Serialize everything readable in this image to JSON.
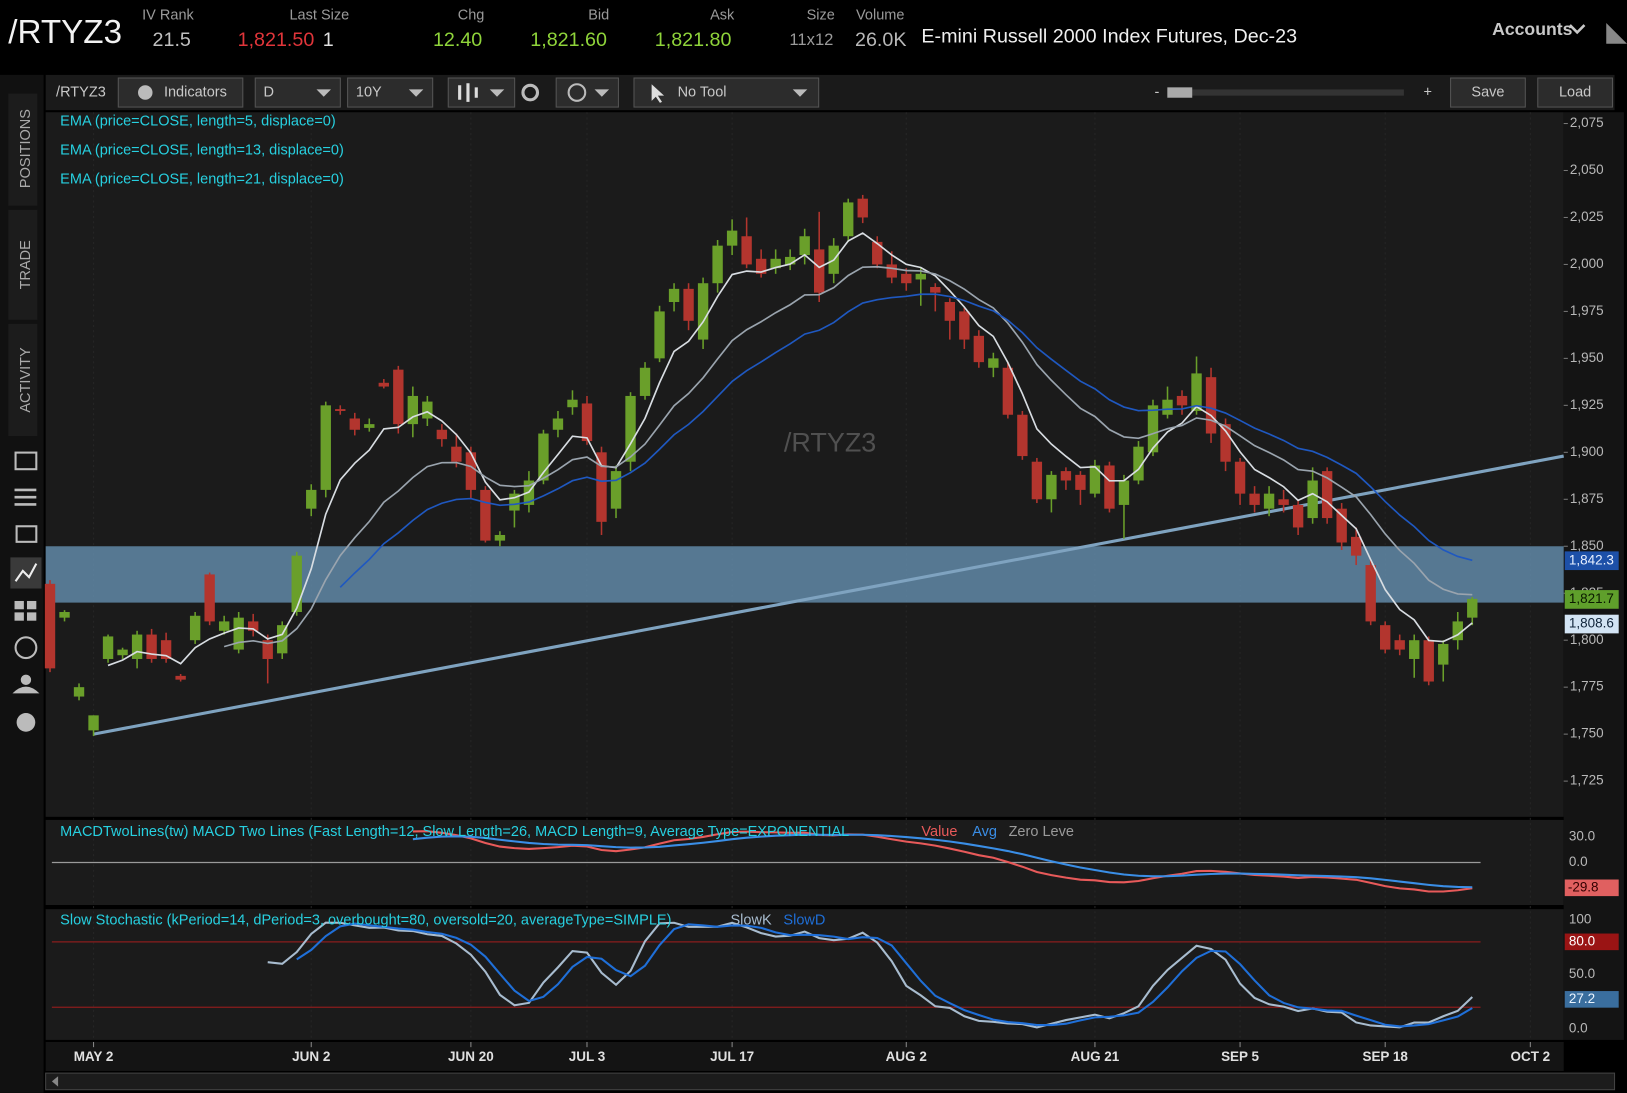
{
  "header": {
    "symbol": "/RTYZ3",
    "fields": [
      {
        "label": "IV Rank",
        "value": "21.5"
      },
      {
        "label": "Last Size",
        "value": "1,821.50",
        "size": "1"
      },
      {
        "label": "Chg",
        "value": "12.40"
      },
      {
        "label": "Bid",
        "value": "1,821.60"
      },
      {
        "label": "Ask",
        "value": "1,821.80"
      },
      {
        "label": "Size",
        "value": "11x12"
      },
      {
        "label": "Volume",
        "value": "26.0K"
      }
    ],
    "description": "E-mini Russell 2000 Index Futures, Dec-23",
    "accounts": "Accounts"
  },
  "toolbar": {
    "symbol": "/RTYZ3",
    "indicators": "Indicators",
    "aggregation": "D",
    "period": "10Y",
    "tool": "No Tool",
    "zoom_out": "-",
    "zoom_in": "+",
    "save": "Save",
    "load": "Load"
  },
  "sidebar": [
    "POSITIONS",
    "TRADE",
    "ACTIVITY"
  ],
  "chart_data": {
    "type": "candlestick",
    "watermark": "/RTYZ3",
    "up_color": "#6a9f2a",
    "down_color": "#b3352e",
    "candles": [
      [
        1830,
        1832,
        1783,
        1785
      ],
      [
        1812,
        1816,
        1810,
        1815
      ],
      [
        1770,
        1777,
        1768,
        1775
      ],
      [
        1752,
        1760,
        1749,
        1760
      ],
      [
        1790,
        1803,
        1788,
        1802
      ],
      [
        1792,
        1796,
        1790,
        1795
      ],
      [
        1790,
        1805,
        1785,
        1803
      ],
      [
        1803,
        1806,
        1788,
        1790
      ],
      [
        1800,
        1804,
        1788,
        1790
      ],
      [
        1781,
        1782,
        1778,
        1779
      ],
      [
        1800,
        1815,
        1798,
        1813
      ],
      [
        1835,
        1836,
        1808,
        1810
      ],
      [
        1805,
        1813,
        1803,
        1810
      ],
      [
        1795,
        1815,
        1793,
        1812
      ],
      [
        1810,
        1814,
        1802,
        1805
      ],
      [
        1800,
        1803,
        1777,
        1790
      ],
      [
        1793,
        1810,
        1790,
        1808
      ],
      [
        1815,
        1847,
        1813,
        1845
      ],
      [
        1870,
        1883,
        1866,
        1880
      ],
      [
        1880,
        1927,
        1876,
        1925
      ],
      [
        1923,
        1925,
        1920,
        1922
      ],
      [
        1918,
        1921,
        1909,
        1912
      ],
      [
        1913,
        1918,
        1911,
        1915
      ],
      [
        1937,
        1939,
        1934,
        1935
      ],
      [
        1944,
        1946,
        1910,
        1915
      ],
      [
        1915,
        1935,
        1908,
        1930
      ],
      [
        1918,
        1930,
        1914,
        1927
      ],
      [
        1912,
        1915,
        1903,
        1907
      ],
      [
        1903,
        1910,
        1892,
        1895
      ],
      [
        1900,
        1903,
        1875,
        1880
      ],
      [
        1880,
        1882,
        1852,
        1853
      ],
      [
        1853,
        1858,
        1850,
        1856
      ],
      [
        1869,
        1880,
        1860,
        1878
      ],
      [
        1872,
        1890,
        1868,
        1885
      ],
      [
        1885,
        1912,
        1883,
        1910
      ],
      [
        1912,
        1922,
        1908,
        1918
      ],
      [
        1924,
        1933,
        1920,
        1928
      ],
      [
        1926,
        1930,
        1904,
        1906
      ],
      [
        1900,
        1903,
        1856,
        1863
      ],
      [
        1870,
        1893,
        1865,
        1890
      ],
      [
        1895,
        1932,
        1890,
        1930
      ],
      [
        1930,
        1948,
        1928,
        1945
      ],
      [
        1950,
        1978,
        1948,
        1975
      ],
      [
        1980,
        1990,
        1975,
        1987
      ],
      [
        1987,
        1990,
        1965,
        1970
      ],
      [
        1960,
        1993,
        1955,
        1990
      ],
      [
        1990,
        2013,
        1985,
        2010
      ],
      [
        2010,
        2024,
        2005,
        2018
      ],
      [
        2015,
        2025,
        1998,
        2000
      ],
      [
        2003,
        2008,
        1993,
        1995
      ],
      [
        1998,
        2008,
        1995,
        2003
      ],
      [
        2000,
        2008,
        1997,
        2004
      ],
      [
        2005,
        2019,
        2000,
        2015
      ],
      [
        2008,
        2028,
        1980,
        1985
      ],
      [
        1995,
        2014,
        1990,
        2010
      ],
      [
        2015,
        2035,
        2012,
        2033
      ],
      [
        2035,
        2037,
        2022,
        2025
      ],
      [
        2012,
        2015,
        1998,
        2000
      ],
      [
        2000,
        2007,
        1990,
        1993
      ],
      [
        1995,
        1998,
        1986,
        1990
      ],
      [
        1992,
        1998,
        1978,
        1995
      ],
      [
        1988,
        1990,
        1975,
        1985
      ],
      [
        1980,
        1982,
        1960,
        1970
      ],
      [
        1975,
        1977,
        1955,
        1960
      ],
      [
        1962,
        1965,
        1945,
        1948
      ],
      [
        1945,
        1953,
        1940,
        1950
      ],
      [
        1945,
        1948,
        1918,
        1920
      ],
      [
        1920,
        1922,
        1896,
        1898
      ],
      [
        1895,
        1897,
        1873,
        1875
      ],
      [
        1875,
        1890,
        1868,
        1888
      ],
      [
        1890,
        1892,
        1880,
        1885
      ],
      [
        1888,
        1890,
        1872,
        1880
      ],
      [
        1878,
        1896,
        1876,
        1893
      ],
      [
        1893,
        1895,
        1868,
        1870
      ],
      [
        1872,
        1888,
        1854,
        1885
      ],
      [
        1885,
        1906,
        1883,
        1903
      ],
      [
        1900,
        1928,
        1898,
        1925
      ],
      [
        1920,
        1935,
        1918,
        1928
      ],
      [
        1930,
        1933,
        1920,
        1925
      ],
      [
        1922,
        1951,
        1920,
        1942
      ],
      [
        1940,
        1945,
        1905,
        1910
      ],
      [
        1915,
        1918,
        1890,
        1895
      ],
      [
        1895,
        1897,
        1872,
        1878
      ],
      [
        1878,
        1882,
        1868,
        1872
      ],
      [
        1870,
        1882,
        1866,
        1878
      ],
      [
        1875,
        1880,
        1868,
        1872
      ],
      [
        1872,
        1875,
        1856,
        1860
      ],
      [
        1865,
        1892,
        1862,
        1885
      ],
      [
        1890,
        1892,
        1862,
        1865
      ],
      [
        1870,
        1873,
        1848,
        1852
      ],
      [
        1855,
        1860,
        1840,
        1845
      ],
      [
        1840,
        1843,
        1808,
        1810
      ],
      [
        1808,
        1810,
        1793,
        1795
      ],
      [
        1800,
        1803,
        1792,
        1795
      ],
      [
        1790,
        1803,
        1780,
        1800
      ],
      [
        1800,
        1802,
        1776,
        1778
      ],
      [
        1787,
        1800,
        1778,
        1798
      ],
      [
        1800,
        1815,
        1795,
        1810
      ],
      [
        1812,
        1823,
        1808,
        1822
      ]
    ],
    "xlim": [
      -0.3,
      104.3
    ],
    "xticks": [
      {
        "value": 3,
        "label": "MAY 2"
      },
      {
        "value": 18,
        "label": "JUN 2"
      },
      {
        "value": 29,
        "label": "JUN 20"
      },
      {
        "value": 37,
        "label": "JUL 3"
      },
      {
        "value": 47,
        "label": "JUL 17"
      },
      {
        "value": 59,
        "label": "AUG 2"
      },
      {
        "value": 72,
        "label": "AUG 21"
      },
      {
        "value": 82,
        "label": "SEP 5"
      },
      {
        "value": 92,
        "label": "SEP 18"
      },
      {
        "value": 102,
        "label": "OCT 2"
      }
    ],
    "ylim": [
      1706,
      2081
    ],
    "yticks": [
      {
        "value": 2075,
        "label": "2,075"
      },
      {
        "value": 2050,
        "label": "2,050"
      },
      {
        "value": 2025,
        "label": "2,025"
      },
      {
        "value": 2000,
        "label": "2,000"
      },
      {
        "value": 1975,
        "label": "1,975"
      },
      {
        "value": 1950,
        "label": "1,950"
      },
      {
        "value": 1925,
        "label": "1,925"
      },
      {
        "value": 1900,
        "label": "1,900"
      },
      {
        "value": 1875,
        "label": "1,875"
      },
      {
        "value": 1850,
        "label": "1,850"
      },
      {
        "value": 1825,
        "label": "1,825"
      },
      {
        "value": 1800,
        "label": "1,800"
      },
      {
        "value": 1775,
        "label": "1,775"
      },
      {
        "value": 1750,
        "label": "1,750"
      },
      {
        "value": 1725,
        "label": "1,725"
      }
    ],
    "studies": [
      {
        "label": "EMA (price=CLOSE, length=5, displace=0)",
        "length": 5,
        "color": "#d8dde2"
      },
      {
        "label": "EMA (price=CLOSE, length=13, displace=0)",
        "length": 13,
        "color": "#9aa4ae"
      },
      {
        "label": "EMA (price=CLOSE, length=21, displace=0)",
        "length": 21,
        "color": "#1f58c0"
      }
    ],
    "zone": {
      "from": 1820,
      "to": 1850,
      "color": "#6f9fc4"
    },
    "trendline": {
      "x": [
        3,
        104.3
      ],
      "y": [
        1750,
        1898
      ],
      "color": "#7fa3c0"
    },
    "price_tags": [
      {
        "value": 1842.3,
        "label": "1,842.3",
        "color": "#1d50a8",
        "text_color": "#e8f0ff"
      },
      {
        "value": 1821.7,
        "label": "1,821.7",
        "color": "#5f9f2b",
        "text_color": "#0b1a00"
      },
      {
        "value": 1808.6,
        "label": "1,808.6",
        "color": "#d3e4f4",
        "text_color": "#10243a"
      }
    ],
    "macd": {
      "label": "MACDTwoLines(tw) MACD Two Lines (Fast Length=12, Slow Length=26, MACD Length=9, Average Type=EXPONENTIAL",
      "fast": 12,
      "slow": 26,
      "signal": 9,
      "legend": [
        {
          "name": "Value",
          "color": "#e85a5a"
        },
        {
          "name": "Avg",
          "color": "#3a8ee6"
        },
        {
          "name": "Zero Leve",
          "color": "#9a9a9a"
        }
      ],
      "ylim": [
        -50,
        50
      ],
      "yticks": [
        {
          "value": 30,
          "label": "30.0"
        },
        {
          "value": 0,
          "label": "0.0"
        }
      ],
      "last_tag": {
        "value": -29.8,
        "label": "-29.8"
      }
    },
    "stochastic": {
      "label": "Slow Stochastic (kPeriod=14, dPeriod=3, overbought=80, oversold=20, averageType=SIMPLE)",
      "k_period": 14,
      "d_period": 3,
      "overbought": 80,
      "oversold": 20,
      "legend": [
        {
          "name": "SlowK",
          "color": "#a8bccf"
        },
        {
          "name": "SlowD",
          "color": "#1f6fd8"
        }
      ],
      "ylim": [
        -10,
        110
      ],
      "yticks": [
        100,
        {
          "value": 50,
          "label": "50.0"
        },
        {
          "value": 0,
          "label": "0.0"
        }
      ],
      "overbought_tag": {
        "value": 80,
        "label": "80.0"
      },
      "last_tag": {
        "value": 27.2,
        "label": "27.2"
      }
    }
  }
}
